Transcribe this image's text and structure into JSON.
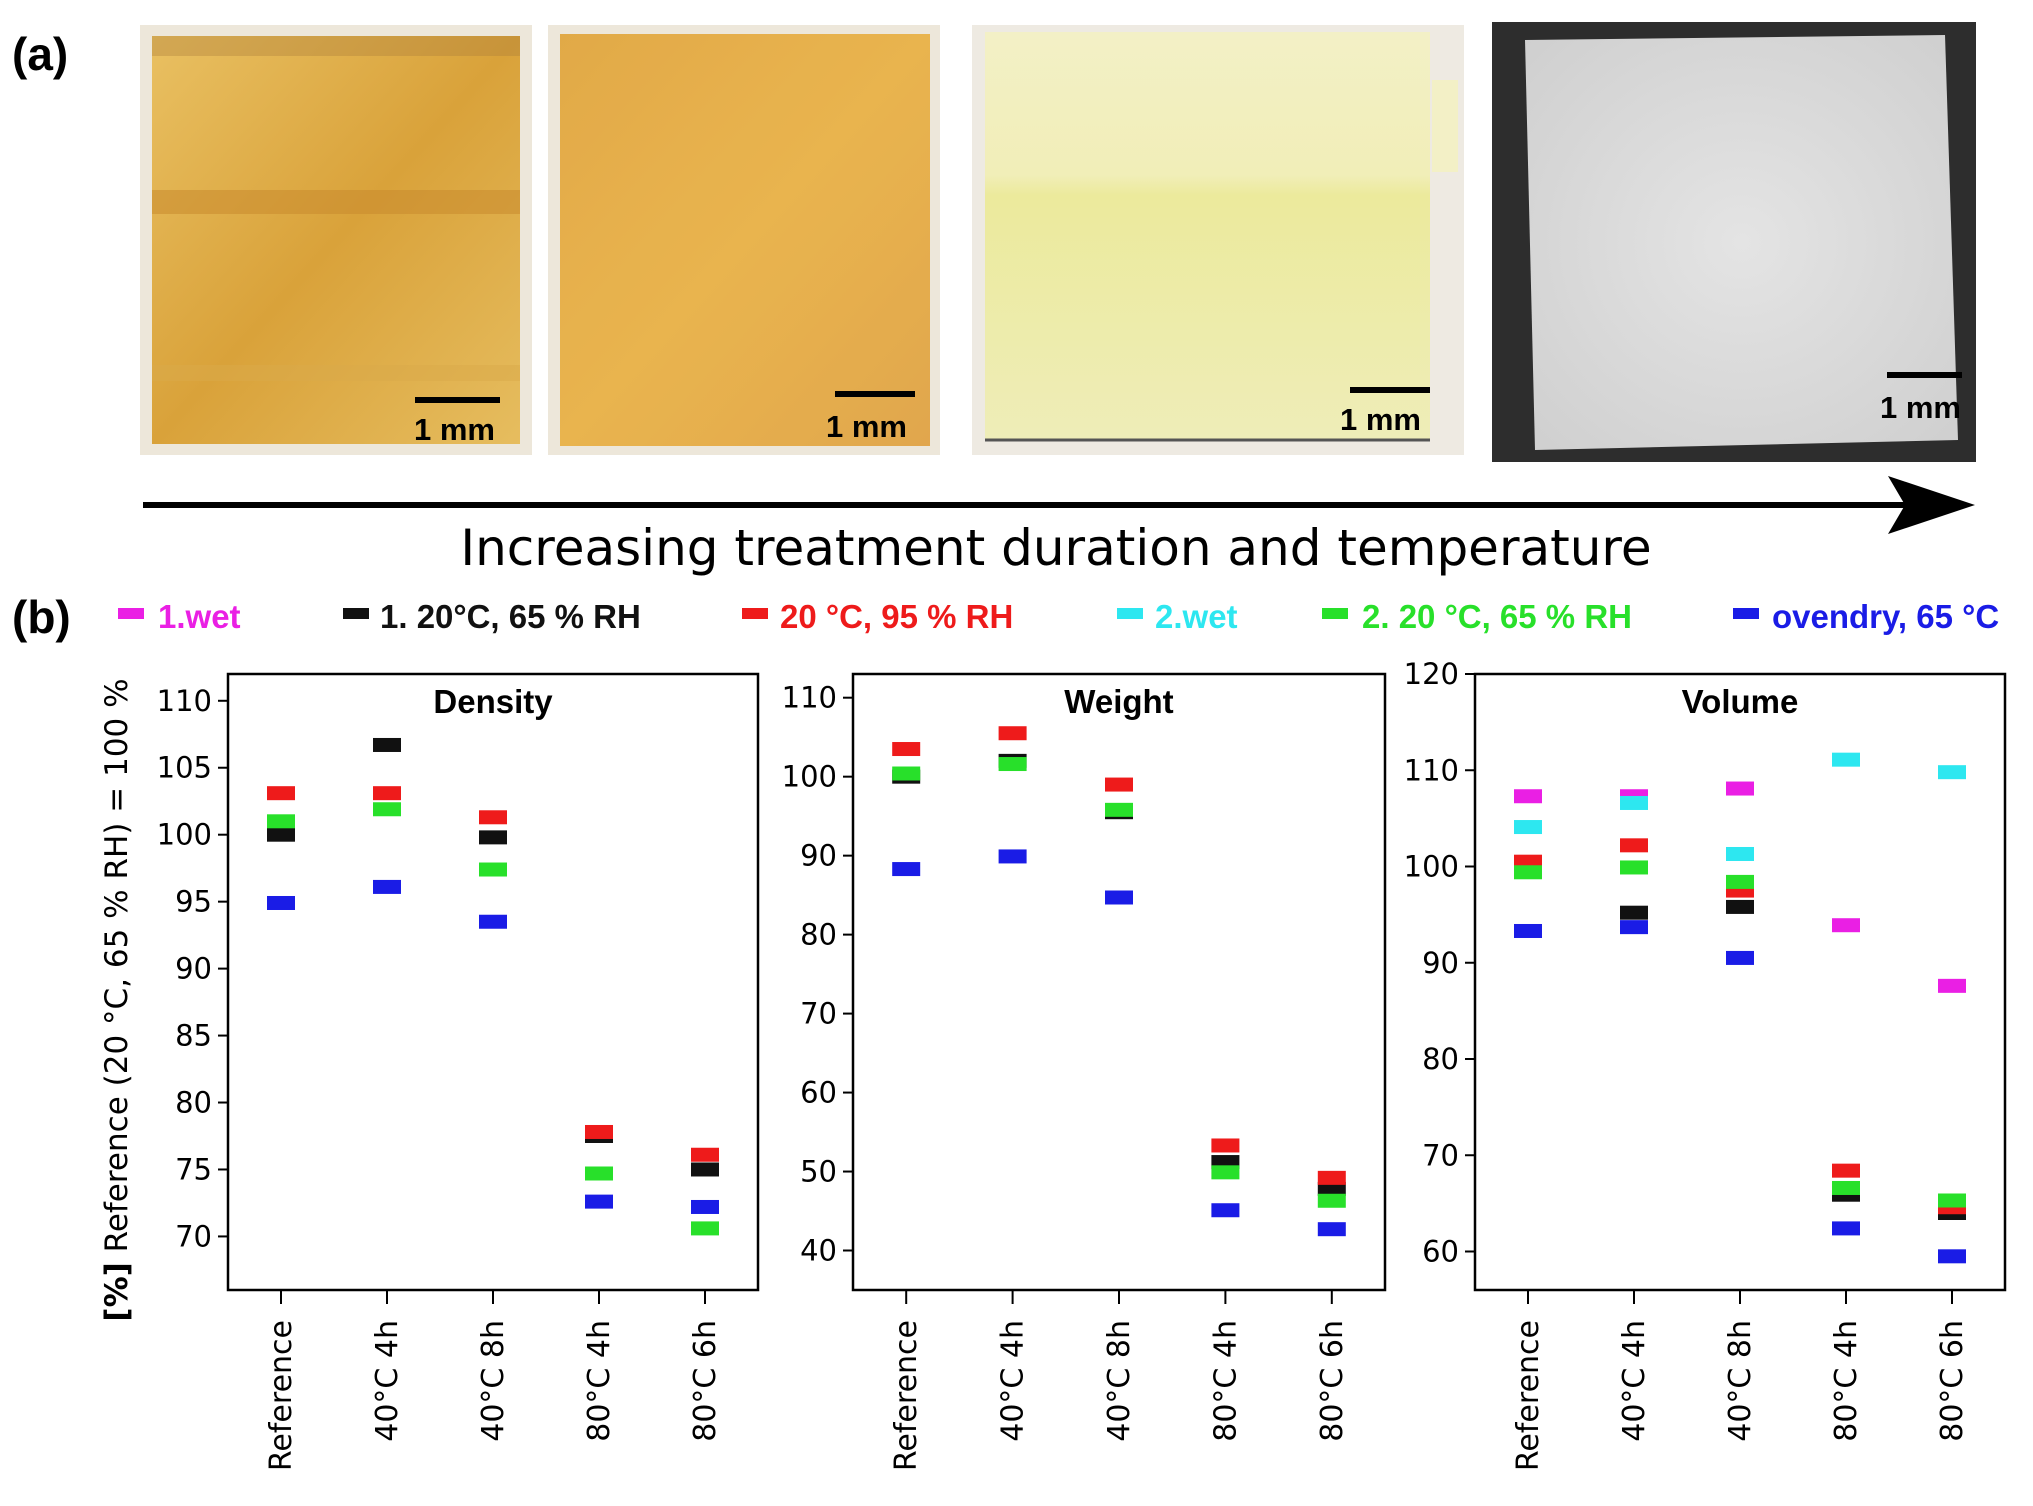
{
  "panel_a": {
    "label": "(a)",
    "scale_bar_label": "1 mm",
    "arrow_caption": "Increasing treatment duration and temperature"
  },
  "panel_b": {
    "label": "(b)"
  },
  "colors": {
    "1.wet": "#ea1fe4",
    "1. 20°C, 65 % RH": "#111111",
    "20 °C, 95 % RH": "#ee1b1b",
    "2.wet": "#2de7f0",
    "2. 20 °C, 65 % RH": "#28e02a",
    "ovendry, 65 °C": "#1a1ce6"
  },
  "legend": [
    {
      "key": "1.wet",
      "label": "1.wet",
      "color": "#ea1fe4"
    },
    {
      "key": "1. 20°C, 65 % RH",
      "label": "1. 20°C, 65 % RH",
      "color": "#111111"
    },
    {
      "key": "20 °C, 95 % RH",
      "label": "20 °C, 95 % RH",
      "color": "#ee1b1b"
    },
    {
      "key": "2.wet",
      "label": "2.wet",
      "color": "#2de7f0"
    },
    {
      "key": "2. 20 °C, 65 % RH",
      "label": "2. 20 °C, 65 % RH",
      "color": "#28e02a"
    },
    {
      "key": "ovendry, 65 °C",
      "label": "ovendry, 65 °C",
      "color": "#1a1ce6"
    }
  ],
  "ylabel_prefix": "[%]",
  "ylabel_rest": " Reference (20 °C, 65 % RH) = 100 %",
  "chart_data": [
    {
      "type": "scatter",
      "title": "Density",
      "ylabel": "[%] Reference (20 °C, 65 % RH) = 100 %",
      "ylim": [
        66,
        112
      ],
      "yticks": [
        70,
        75,
        80,
        85,
        90,
        95,
        100,
        105,
        110
      ],
      "categories": [
        "Reference",
        "40°C 4h",
        "40°C 8h",
        "80°C 4h",
        "80°C 6h"
      ],
      "series": [
        {
          "name": "1. 20°C, 65 % RH",
          "values": [
            100.0,
            106.7,
            99.8,
            77.5,
            75.0
          ]
        },
        {
          "name": "20 °C, 95 % RH",
          "values": [
            103.1,
            103.1,
            101.3,
            77.8,
            76.1
          ]
        },
        {
          "name": "2. 20 °C, 65 % RH",
          "values": [
            101.0,
            101.9,
            97.4,
            74.7,
            70.6
          ]
        },
        {
          "name": "ovendry, 65 °C",
          "values": [
            94.9,
            96.1,
            93.5,
            72.6,
            72.2
          ]
        }
      ]
    },
    {
      "type": "scatter",
      "title": "Weight",
      "ylim": [
        35,
        113
      ],
      "yticks": [
        40,
        50,
        60,
        70,
        80,
        90,
        100,
        110
      ],
      "categories": [
        "Reference",
        "40°C 4h",
        "40°C 8h",
        "80°C 4h",
        "80°C 6h"
      ],
      "series": [
        {
          "name": "1. 20°C, 65 % RH",
          "values": [
            100.0,
            102.0,
            95.5,
            51.2,
            47.8
          ]
        },
        {
          "name": "20 °C, 95 % RH",
          "values": [
            103.5,
            105.5,
            99.0,
            53.3,
            49.2
          ]
        },
        {
          "name": "2. 20 °C, 65 % RH",
          "values": [
            100.4,
            101.6,
            95.8,
            49.9,
            46.3
          ]
        },
        {
          "name": "ovendry, 65 °C",
          "values": [
            88.3,
            89.9,
            84.7,
            45.1,
            42.7
          ]
        }
      ]
    },
    {
      "type": "scatter",
      "title": "Volume",
      "ylim": [
        56,
        120
      ],
      "yticks": [
        60,
        70,
        80,
        90,
        100,
        110,
        120
      ],
      "categories": [
        "Reference",
        "40°C 4h",
        "40°C 8h",
        "80°C 4h",
        "80°C 6h"
      ],
      "series": [
        {
          "name": "1.wet",
          "values": [
            107.3,
            107.3,
            108.1,
            93.9,
            87.6
          ]
        },
        {
          "name": "1. 20°C, 65 % RH",
          "values": [
            100.0,
            95.2,
            95.8,
            65.9,
            64.0
          ]
        },
        {
          "name": "20 °C, 95 % RH",
          "values": [
            100.5,
            102.2,
            97.5,
            68.4,
            64.6
          ]
        },
        {
          "name": "2.wet",
          "values": [
            104.1,
            106.6,
            101.3,
            111.1,
            109.8
          ]
        },
        {
          "name": "2. 20 °C, 65 % RH",
          "values": [
            99.4,
            99.9,
            98.4,
            66.6,
            65.3
          ]
        },
        {
          "name": "ovendry, 65 °C",
          "values": [
            93.3,
            93.7,
            90.5,
            62.4,
            59.5
          ]
        }
      ]
    }
  ]
}
